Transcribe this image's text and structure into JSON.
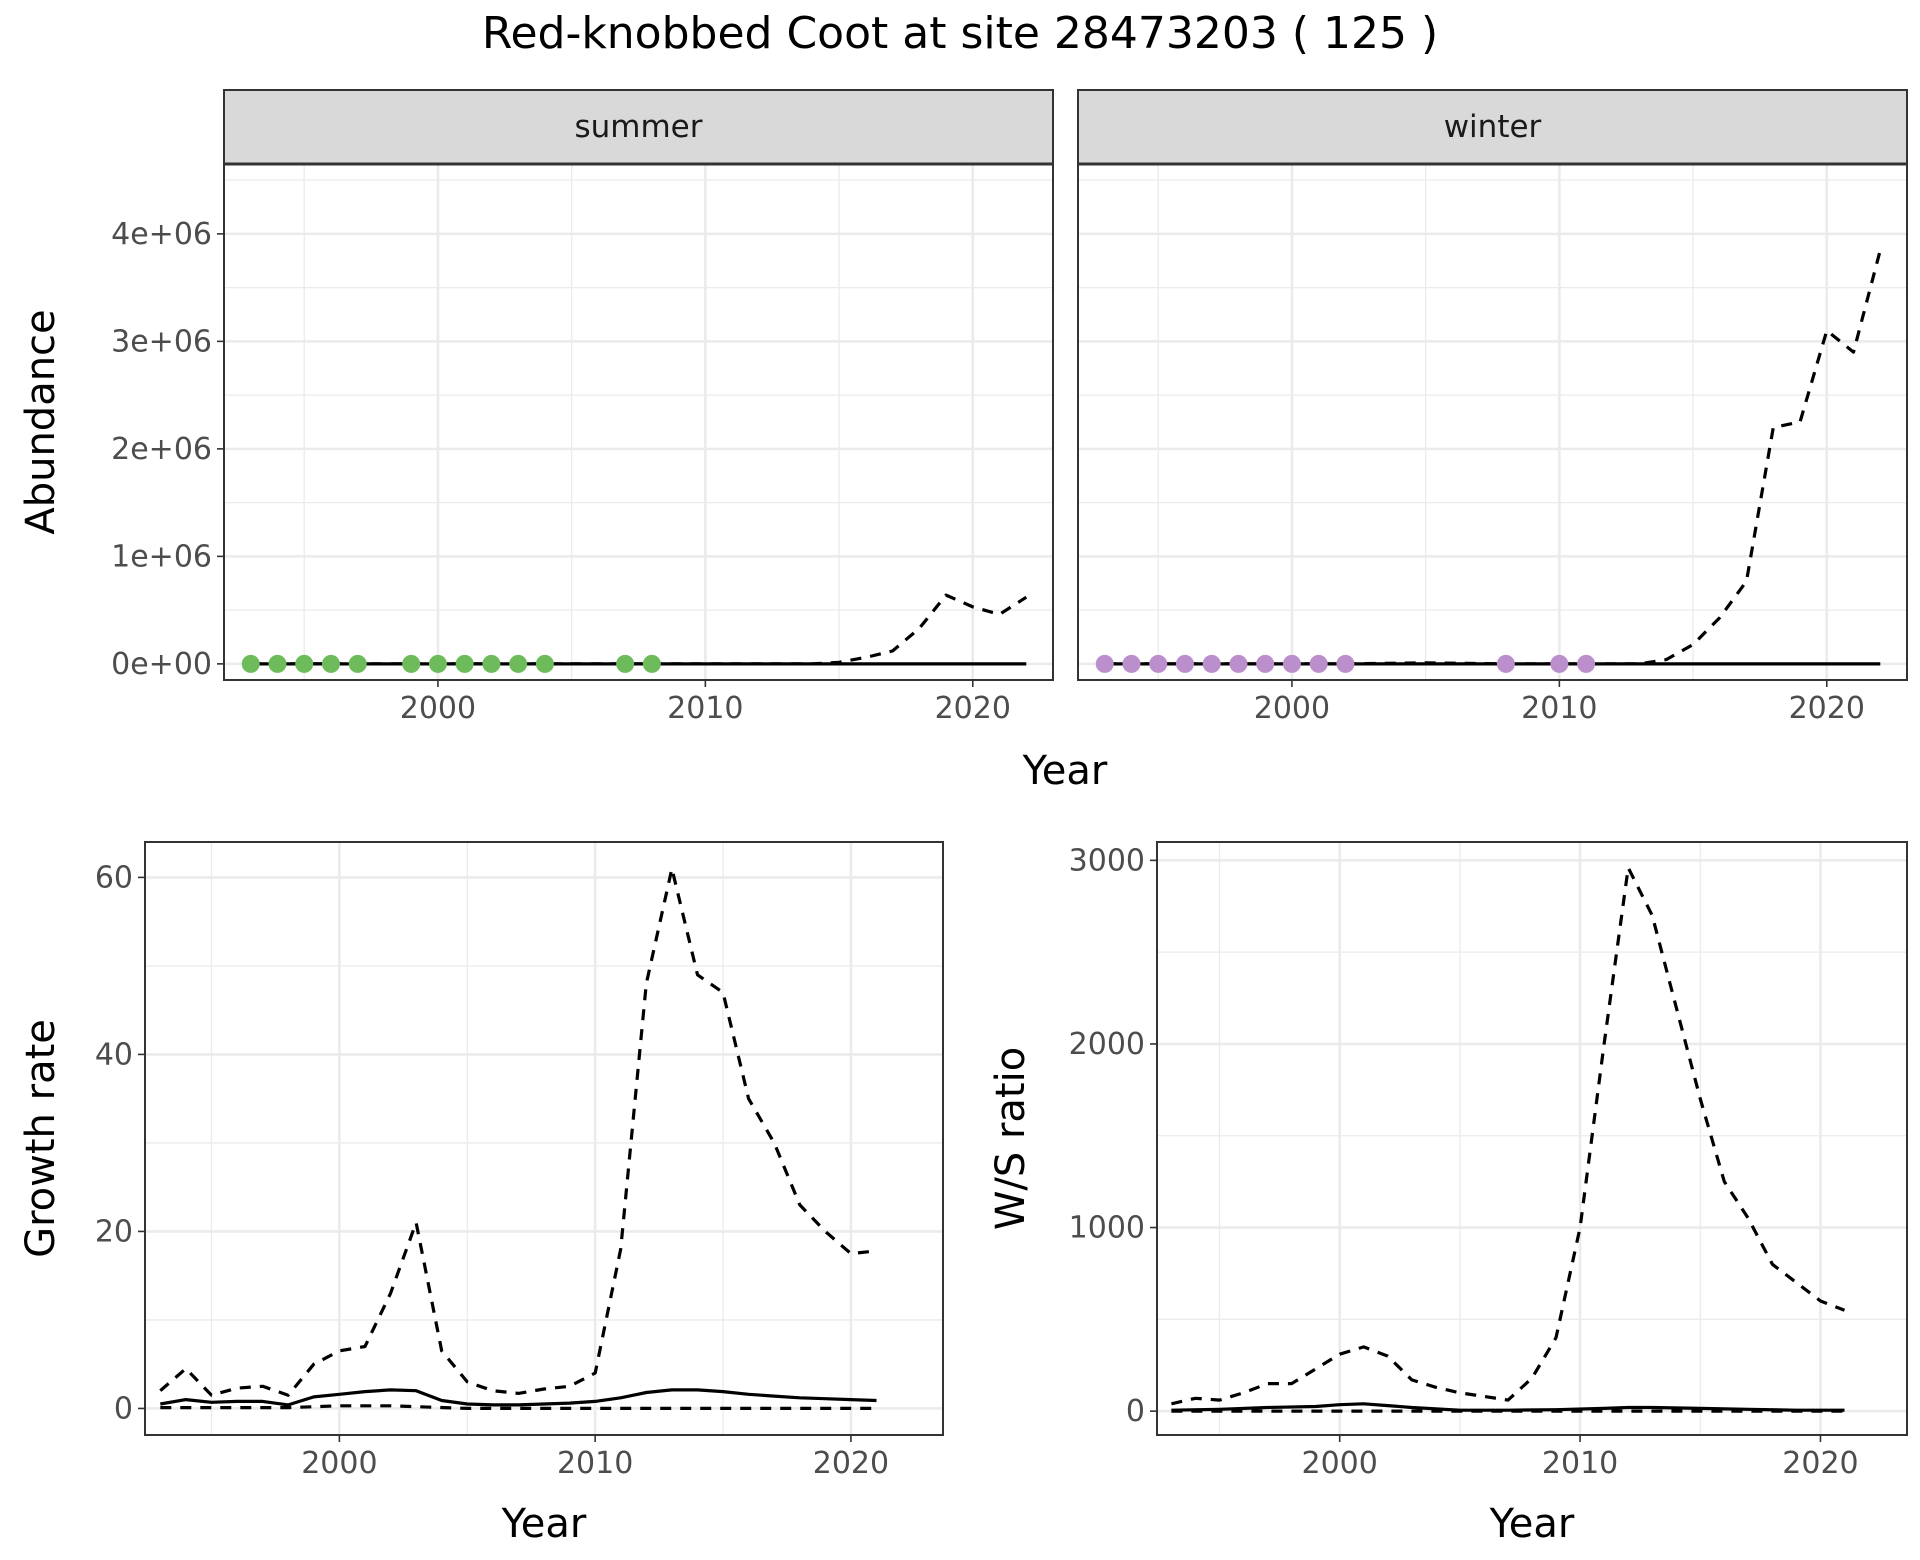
{
  "title": "Red-knobbed Coot at site 28473203 ( 125 )",
  "colors": {
    "summer_points": "#6dbb5a",
    "winter_points": "#bb8fcb",
    "strip_fill": "#d9d9d9",
    "grid": "#ebebeb",
    "line": "#000000"
  },
  "chart_data": [
    {
      "type": "line",
      "facets": [
        "summer",
        "winter"
      ],
      "xlabel": "Year",
      "ylabel": "Abundance",
      "xlim": [
        1992,
        2023
      ],
      "ylim": [
        -150000,
        4650000
      ],
      "x_ticks": [
        2000,
        2010,
        2020
      ],
      "x_tick_labels": [
        "2000",
        "2010",
        "2020"
      ],
      "y_ticks": [
        0,
        1000000,
        2000000,
        3000000,
        4000000
      ],
      "y_tick_labels": [
        "0e+00",
        "1e+06",
        "2e+06",
        "3e+06",
        "4e+06"
      ],
      "grid": true,
      "panels": [
        {
          "name": "summer",
          "solid": {
            "x": [
              1993,
              2022
            ],
            "y": [
              0,
              0
            ]
          },
          "dashed": {
            "x": [
              1993,
              2014,
              2015,
              2016,
              2017,
              2018,
              2019,
              2020,
              2021,
              2022
            ],
            "y": [
              0,
              0,
              15000,
              60000,
              120000,
              330000,
              640000,
              530000,
              460000,
              620000
            ]
          },
          "points": {
            "x": [
              1993,
              1994,
              1995,
              1996,
              1997,
              1999,
              2000,
              2001,
              2002,
              2003,
              2004,
              2007,
              2008
            ],
            "y": [
              0,
              0,
              0,
              0,
              0,
              0,
              0,
              0,
              0,
              0,
              0,
              0,
              0
            ]
          }
        },
        {
          "name": "winter",
          "solid": {
            "x": [
              1993,
              2022
            ],
            "y": [
              0,
              0
            ]
          },
          "dashed": {
            "x": [
              1993,
              2002,
              2005,
              2008,
              2013,
              2014,
              2015,
              2016,
              2017,
              2018,
              2019,
              2020,
              2021,
              2022
            ],
            "y": [
              0,
              0,
              10000,
              0,
              0,
              40000,
              180000,
              430000,
              770000,
              2200000,
              2250000,
              3100000,
              2900000,
              3850000
            ]
          },
          "points": {
            "x": [
              1993,
              1994,
              1995,
              1996,
              1997,
              1998,
              1999,
              2000,
              2001,
              2002,
              2008,
              2010,
              2011
            ],
            "y": [
              0,
              0,
              0,
              0,
              0,
              0,
              0,
              0,
              0,
              0,
              0,
              0,
              0
            ]
          }
        }
      ]
    },
    {
      "type": "line",
      "xlabel": "Year",
      "ylabel": "Growth rate",
      "xlim": [
        1992.4,
        2023.6
      ],
      "ylim": [
        -3,
        64
      ],
      "x_ticks": [
        2000,
        2010,
        2020
      ],
      "x_tick_labels": [
        "2000",
        "2010",
        "2020"
      ],
      "y_ticks": [
        0,
        20,
        40,
        60
      ],
      "y_tick_labels": [
        "0",
        "20",
        "40",
        "60"
      ],
      "grid": true,
      "series": [
        {
          "style": "dashed",
          "x": [
            1993,
            1994,
            1995,
            1996,
            1997,
            1998,
            1999,
            2000,
            2001,
            2002,
            2003,
            2004,
            2005,
            2006,
            2007,
            2008,
            2009,
            2010,
            2011,
            2012,
            2013,
            2014,
            2015,
            2016,
            2017,
            2018,
            2019,
            2020,
            2021
          ],
          "y": [
            2,
            4.5,
            1.5,
            2.3,
            2.5,
            1.5,
            5,
            6.5,
            7,
            13,
            21,
            6.5,
            3,
            2,
            1.7,
            2.2,
            2.5,
            4,
            18,
            48,
            61,
            49,
            47,
            35,
            30,
            23,
            20,
            17.5,
            17.8
          ]
        },
        {
          "style": "solid",
          "x": [
            1993,
            1994,
            1995,
            1996,
            1997,
            1998,
            1999,
            2000,
            2001,
            2002,
            2003,
            2004,
            2005,
            2006,
            2007,
            2008,
            2009,
            2010,
            2011,
            2012,
            2013,
            2014,
            2015,
            2016,
            2017,
            2018,
            2019,
            2020,
            2021
          ],
          "y": [
            0.5,
            1,
            0.7,
            0.8,
            0.8,
            0.4,
            1.3,
            1.6,
            1.9,
            2.1,
            2,
            0.9,
            0.5,
            0.4,
            0.4,
            0.5,
            0.6,
            0.8,
            1.2,
            1.8,
            2.1,
            2.1,
            1.9,
            1.6,
            1.4,
            1.2,
            1.1,
            1,
            0.9
          ]
        },
        {
          "style": "dashed",
          "x": [
            1993,
            1995,
            1998,
            2000,
            2002,
            2003,
            2005,
            2010,
            2015,
            2021
          ],
          "y": [
            0.1,
            0.1,
            0.1,
            0.3,
            0.3,
            0.2,
            0,
            0,
            0,
            0
          ]
        }
      ]
    },
    {
      "type": "line",
      "xlabel": "Year",
      "ylabel": "W/S ratio",
      "xlim": [
        1992.4,
        2023.6
      ],
      "ylim": [
        -130,
        3100
      ],
      "x_ticks": [
        2000,
        2010,
        2020
      ],
      "x_tick_labels": [
        "2000",
        "2010",
        "2020"
      ],
      "y_ticks": [
        0,
        1000,
        2000,
        3000
      ],
      "y_tick_labels": [
        "0",
        "1000",
        "2000",
        "3000"
      ],
      "grid": true,
      "series": [
        {
          "style": "dashed",
          "x": [
            1993,
            1994,
            1995,
            1996,
            1997,
            1998,
            1999,
            2000,
            2001,
            2002,
            2003,
            2004,
            2005,
            2006,
            2007,
            2008,
            2009,
            2010,
            2011,
            2012,
            2013,
            2014,
            2015,
            2016,
            2017,
            2018,
            2019,
            2020,
            2021
          ],
          "y": [
            40,
            70,
            60,
            100,
            150,
            150,
            230,
            310,
            350,
            300,
            170,
            130,
            100,
            80,
            60,
            180,
            400,
            1000,
            2000,
            2960,
            2700,
            2200,
            1700,
            1250,
            1050,
            800,
            700,
            600,
            550
          ]
        },
        {
          "style": "solid",
          "x": [
            1993,
            1995,
            1997,
            1999,
            2000,
            2001,
            2002,
            2003,
            2005,
            2007,
            2009,
            2011,
            2012,
            2013,
            2015,
            2017,
            2019,
            2021
          ],
          "y": [
            5,
            10,
            20,
            25,
            35,
            40,
            30,
            20,
            5,
            5,
            8,
            15,
            20,
            20,
            15,
            10,
            5,
            5
          ]
        },
        {
          "style": "dashed",
          "x": [
            1993,
            2021
          ],
          "y": [
            0,
            0
          ]
        }
      ]
    }
  ]
}
